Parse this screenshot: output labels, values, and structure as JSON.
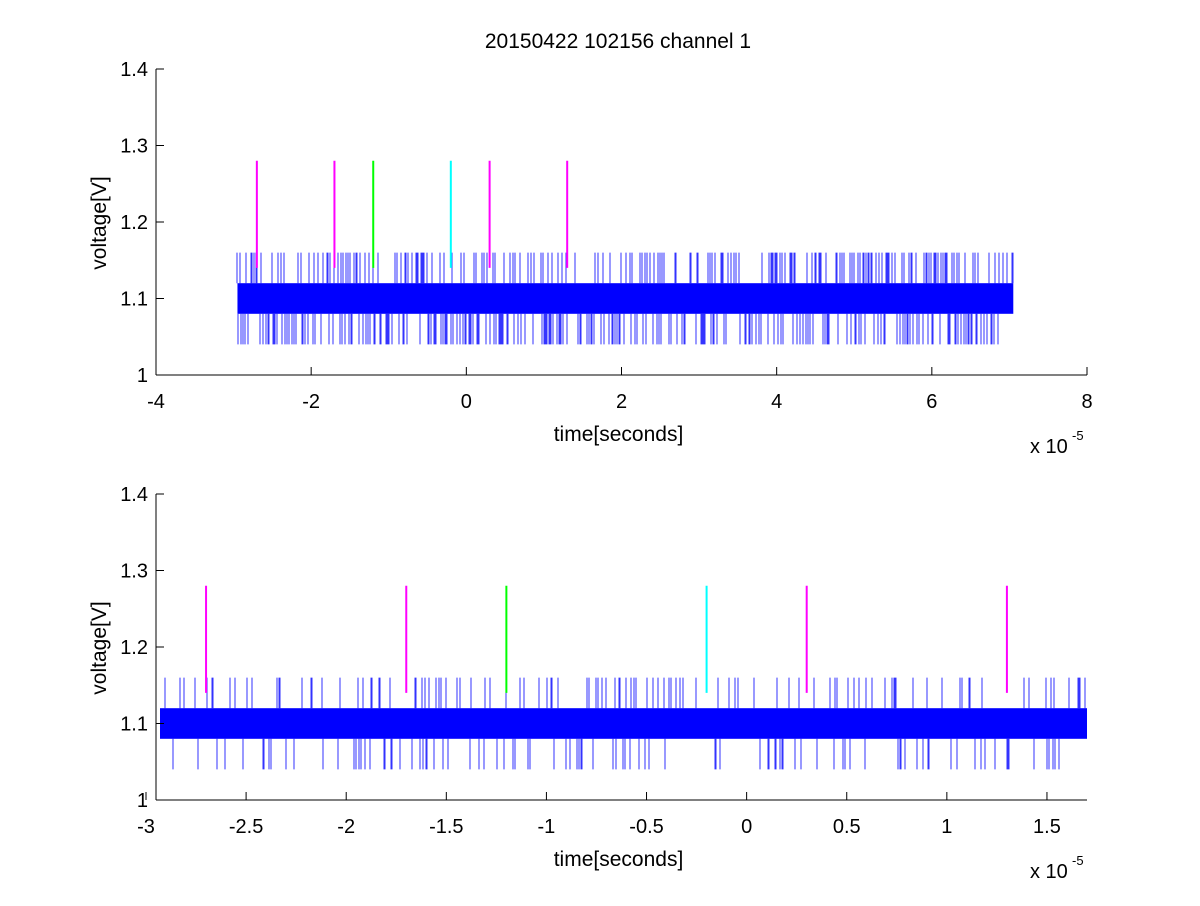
{
  "figure_title": "20150422 102156 channel 1",
  "colors": {
    "signal": "#0000ff",
    "magenta": "#ff00ff",
    "green": "#00ff00",
    "cyan": "#00ffff",
    "axes": "#000000",
    "background": "#ffffff"
  },
  "chart_data": [
    {
      "type": "line",
      "name": "top",
      "xlabel": "time[seconds]",
      "ylabel": "voltage[V]",
      "xlim": [
        -4,
        8
      ],
      "ylim": [
        1,
        1.4
      ],
      "xticks": [
        -4,
        -2,
        0,
        2,
        4,
        6,
        8
      ],
      "yticks": [
        1,
        1.1,
        1.2,
        1.3,
        1.4
      ],
      "xtick_labels": [
        "-4",
        "-2",
        "0",
        "2",
        "4",
        "6",
        "8"
      ],
      "ytick_labels": [
        "1",
        "1.1",
        "1.2",
        "1.3",
        "1.4"
      ],
      "x_multiplier_base": "x 10",
      "x_multiplier_exponent": "-5",
      "grid": false,
      "signal": {
        "x_start": -2.95,
        "x_end": 7.05,
        "baseline_low": 1.08,
        "baseline_high": 1.12,
        "spike_high": 1.16,
        "spike_low": 1.04,
        "spike_density": 0.55
      },
      "markers": [
        {
          "x": -2.7,
          "y_low": 1.14,
          "y_high": 1.28,
          "color": "magenta"
        },
        {
          "x": -1.7,
          "y_low": 1.14,
          "y_high": 1.28,
          "color": "magenta"
        },
        {
          "x": -1.2,
          "y_low": 1.14,
          "y_high": 1.28,
          "color": "green"
        },
        {
          "x": -0.2,
          "y_low": 1.14,
          "y_high": 1.28,
          "color": "cyan"
        },
        {
          "x": 0.3,
          "y_low": 1.14,
          "y_high": 1.28,
          "color": "magenta"
        },
        {
          "x": 1.3,
          "y_low": 1.14,
          "y_high": 1.28,
          "color": "magenta"
        }
      ]
    },
    {
      "type": "line",
      "name": "bottom",
      "xlabel": "time[seconds]",
      "ylabel": "voltage[V]",
      "xlim": [
        -2.95,
        1.7
      ],
      "ylim": [
        1,
        1.4
      ],
      "xticks": [
        -3,
        -2.5,
        -2,
        -1.5,
        -1,
        -0.5,
        0,
        0.5,
        1,
        1.5
      ],
      "yticks": [
        1,
        1.1,
        1.2,
        1.3,
        1.4
      ],
      "xtick_labels": [
        "-3",
        "-2.5",
        "-2",
        "-1.5",
        "-1",
        "-0.5",
        "0",
        "0.5",
        "1",
        "1.5"
      ],
      "ytick_labels": [
        "1",
        "1.1",
        "1.2",
        "1.3",
        "1.4"
      ],
      "x_multiplier_base": "x 10",
      "x_multiplier_exponent": "-5",
      "grid": false,
      "signal": {
        "x_start": -2.93,
        "x_end": 1.7,
        "baseline_low": 1.08,
        "baseline_high": 1.12,
        "spike_high": 1.16,
        "spike_low": 1.04,
        "spike_density": 0.22
      },
      "markers": [
        {
          "x": -2.7,
          "y_low": 1.14,
          "y_high": 1.28,
          "color": "magenta"
        },
        {
          "x": -1.7,
          "y_low": 1.14,
          "y_high": 1.28,
          "color": "magenta"
        },
        {
          "x": -1.2,
          "y_low": 1.14,
          "y_high": 1.28,
          "color": "green"
        },
        {
          "x": -0.2,
          "y_low": 1.14,
          "y_high": 1.28,
          "color": "cyan"
        },
        {
          "x": 0.3,
          "y_low": 1.14,
          "y_high": 1.28,
          "color": "magenta"
        },
        {
          "x": 1.3,
          "y_low": 1.14,
          "y_high": 1.28,
          "color": "magenta"
        }
      ]
    }
  ]
}
